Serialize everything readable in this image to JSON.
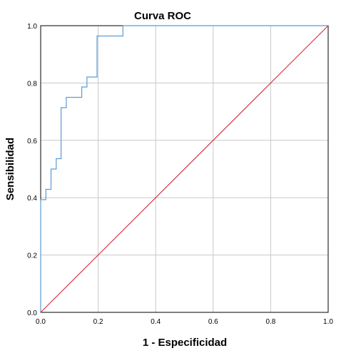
{
  "chart_data": {
    "type": "line",
    "title": "Curva ROC",
    "xlabel": "1 - Especificidad",
    "ylabel": "Sensibilidad",
    "xlim": [
      0,
      1
    ],
    "ylim": [
      0,
      1
    ],
    "x_ticks": [
      "0.0",
      "0.2",
      "0.4",
      "0.6",
      "0.8",
      "1.0"
    ],
    "y_ticks": [
      "0.0",
      "0.2",
      "0.4",
      "0.6",
      "0.8",
      "1.0"
    ],
    "grid": true,
    "legend": "none",
    "series": [
      {
        "color": "#5b9bd5",
        "style": "step",
        "points": [
          [
            0.0,
            0.0
          ],
          [
            0.0,
            0.393
          ],
          [
            0.018,
            0.393
          ],
          [
            0.018,
            0.429
          ],
          [
            0.036,
            0.429
          ],
          [
            0.036,
            0.5
          ],
          [
            0.054,
            0.5
          ],
          [
            0.054,
            0.536
          ],
          [
            0.071,
            0.536
          ],
          [
            0.071,
            0.714
          ],
          [
            0.089,
            0.714
          ],
          [
            0.089,
            0.75
          ],
          [
            0.143,
            0.75
          ],
          [
            0.143,
            0.786
          ],
          [
            0.161,
            0.786
          ],
          [
            0.161,
            0.821
          ],
          [
            0.196,
            0.821
          ],
          [
            0.196,
            0.964
          ],
          [
            0.286,
            0.964
          ],
          [
            0.286,
            1.0
          ],
          [
            1.0,
            1.0
          ]
        ]
      },
      {
        "color": "#e0303a",
        "style": "line",
        "points": [
          [
            0.0,
            0.0
          ],
          [
            1.0,
            1.0
          ]
        ]
      }
    ]
  }
}
